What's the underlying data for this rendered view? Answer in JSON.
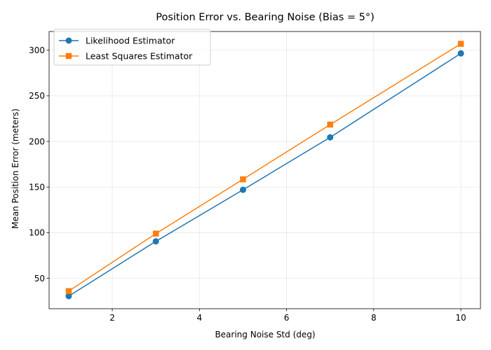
{
  "chart_data": {
    "type": "line",
    "title": "Position Error vs. Bearing Noise (Bias = 5°)",
    "xlabel": "Bearing Noise Std (deg)",
    "ylabel": "Mean Position Error (meters)",
    "xlim": [
      0.55,
      10.45
    ],
    "ylim": [
      16.7,
      320.5
    ],
    "xticks": [
      2,
      4,
      6,
      8,
      10
    ],
    "yticks": [
      50,
      100,
      150,
      200,
      250,
      300
    ],
    "grid": true,
    "legend_position": "top-left",
    "series": [
      {
        "name": "Likelihood Estimator",
        "color": "#1f77b4",
        "marker": "circle",
        "x": [
          1,
          3,
          5,
          7,
          10
        ],
        "y": [
          30.5,
          90.5,
          147,
          204.5,
          296.5
        ]
      },
      {
        "name": "Least Squares Estimator",
        "color": "#ff7f0e",
        "marker": "square",
        "x": [
          1,
          3,
          5,
          7,
          10
        ],
        "y": [
          36,
          99,
          158.5,
          218.5,
          307
        ]
      }
    ]
  }
}
